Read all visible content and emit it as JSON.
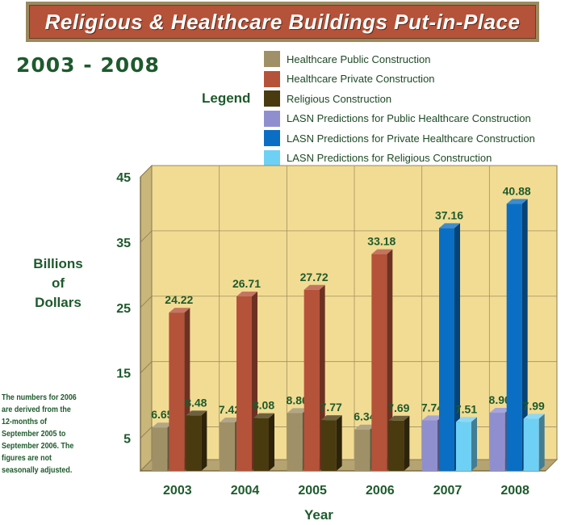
{
  "title": "Religious & Healthcare Buildings Put-in-Place",
  "period": "2003 - 2008",
  "legend_heading": "Legend",
  "legend": [
    {
      "label": "Healthcare Public Construction",
      "color": "#9f9068"
    },
    {
      "label": "Healthcare Private Construction",
      "color": "#b5523a"
    },
    {
      "label": "Religious Construction",
      "color": "#4a3a10"
    },
    {
      "label": "LASN Predictions for Public Healthcare Construction",
      "color": "#8f8fd0"
    },
    {
      "label": "LASN Predictions for Private Healthcare Construction",
      "color": "#0a6fc4"
    },
    {
      "label": "LASN Predictions for Religious Construction",
      "color": "#6fd0f5"
    }
  ],
  "ylabel_lines": [
    "Billions",
    "of",
    "Dollars"
  ],
  "footnote": "The numbers for 2006 are derived from the 12-months of September 2005 to September 2006. The figures are not seasonally adjusted.",
  "chart_data": {
    "type": "bar",
    "title": "Religious & Healthcare Buildings Put-in-Place",
    "xlabel": "Year",
    "ylabel": "Billions of Dollars",
    "categories": [
      "2003",
      "2004",
      "2005",
      "2006",
      "2007",
      "2008"
    ],
    "yticks": [
      5,
      15,
      25,
      35,
      45
    ],
    "ylim": [
      0,
      45
    ],
    "series": [
      {
        "name": "Healthcare Public Construction",
        "values": [
          6.65,
          7.42,
          8.86,
          6.34,
          null,
          null
        ],
        "labels": [
          "6.65",
          "7.42",
          "8.86",
          "6.34",
          null,
          null
        ]
      },
      {
        "name": "Healthcare Private Construction",
        "values": [
          24.22,
          26.71,
          27.72,
          33.18,
          null,
          null
        ],
        "labels": [
          "24.22",
          "26.71",
          "27.72",
          "33.18",
          null,
          null
        ]
      },
      {
        "name": "Religious Construction",
        "values": [
          8.48,
          8.08,
          7.77,
          7.69,
          null,
          null
        ],
        "labels": [
          "8.48",
          "8.08",
          "7.77",
          "7.69",
          null,
          null
        ]
      },
      {
        "name": "LASN Predictions for Public Healthcare Construction",
        "values": [
          null,
          null,
          null,
          null,
          7.74,
          8.9
        ],
        "labels": [
          null,
          null,
          null,
          null,
          "7.74",
          "8.90"
        ]
      },
      {
        "name": "LASN Predictions for Private Healthcare Construction",
        "values": [
          null,
          null,
          null,
          null,
          37.16,
          40.88
        ],
        "labels": [
          null,
          null,
          null,
          null,
          "37.16",
          "40.88"
        ]
      },
      {
        "name": "LASN Predictions for Religious Construction",
        "values": [
          null,
          null,
          null,
          null,
          7.51,
          7.99
        ],
        "labels": [
          null,
          null,
          null,
          null,
          "7.51",
          "7.99"
        ]
      }
    ]
  }
}
